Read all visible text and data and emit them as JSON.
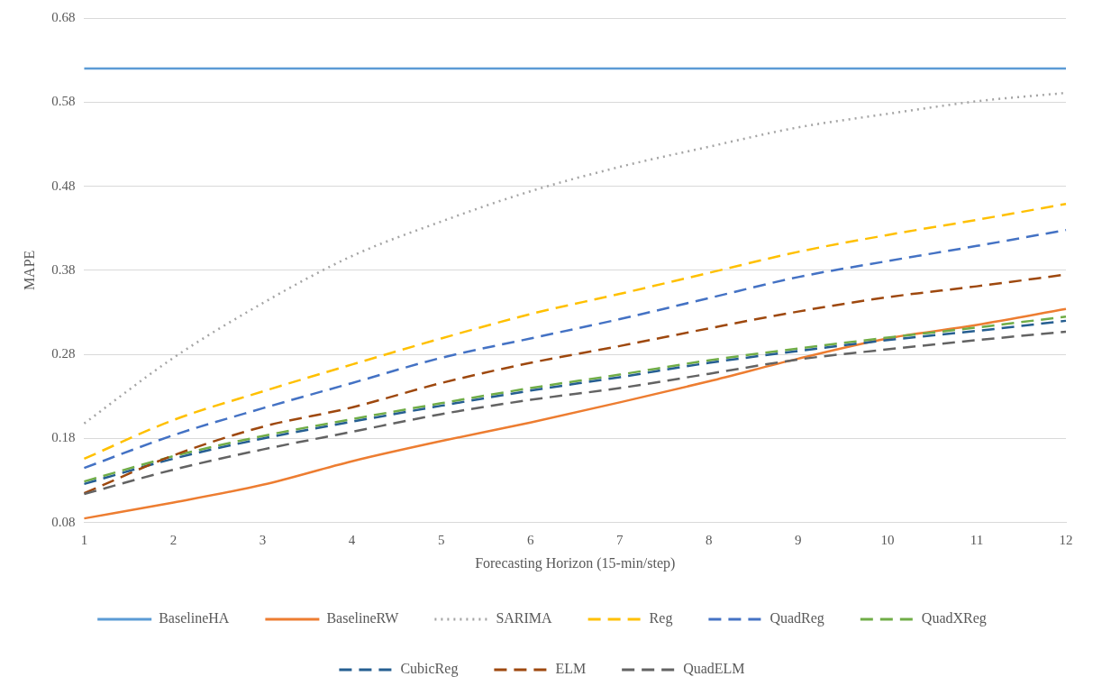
{
  "chart_data": {
    "type": "line",
    "xlabel": "Forecasting Horizon (15-min/step)",
    "ylabel": "MAPE",
    "categories": [
      "1",
      "2",
      "3",
      "4",
      "5",
      "6",
      "7",
      "8",
      "9",
      "10",
      "11",
      "12"
    ],
    "ylim": [
      0.08,
      0.68
    ],
    "yticks": [
      0.08,
      0.18,
      0.28,
      0.38,
      0.48,
      0.58,
      0.68
    ],
    "grid": "y",
    "legend": "bottom",
    "marker": "none",
    "series": [
      {
        "name": "BaselineHA",
        "color": "#5b9bd5",
        "line_style": "solid",
        "values": [
          0.62,
          0.62,
          0.62,
          0.62,
          0.62,
          0.62,
          0.62,
          0.62,
          0.62,
          0.62,
          0.62,
          0.62
        ]
      },
      {
        "name": "BaselineRW",
        "color": "#ed7d31",
        "line_style": "solid",
        "values": [
          0.085,
          0.104,
          0.125,
          0.153,
          0.177,
          0.199,
          0.223,
          0.248,
          0.275,
          0.299,
          0.315,
          0.334
        ]
      },
      {
        "name": "SARIMA",
        "color": "#a5a5a5",
        "line_style": "dotted",
        "values": [
          0.198,
          0.276,
          0.341,
          0.397,
          0.438,
          0.474,
          0.503,
          0.527,
          0.55,
          0.566,
          0.581,
          0.591
        ]
      },
      {
        "name": "Reg",
        "color": "#ffc000",
        "line_style": "dashed",
        "values": [
          0.156,
          0.202,
          0.236,
          0.268,
          0.299,
          0.328,
          0.352,
          0.377,
          0.402,
          0.422,
          0.44,
          0.459
        ]
      },
      {
        "name": "QuadReg",
        "color": "#4472c4",
        "line_style": "dashed",
        "values": [
          0.145,
          0.184,
          0.216,
          0.246,
          0.276,
          0.299,
          0.322,
          0.347,
          0.372,
          0.391,
          0.409,
          0.428
        ]
      },
      {
        "name": "QuadXReg",
        "color": "#70ad47",
        "line_style": "dashed",
        "values": [
          0.129,
          0.159,
          0.183,
          0.203,
          0.222,
          0.24,
          0.256,
          0.273,
          0.287,
          0.3,
          0.312,
          0.325
        ]
      },
      {
        "name": "CubicReg",
        "color": "#255e91",
        "line_style": "dashed",
        "values": [
          0.126,
          0.156,
          0.18,
          0.2,
          0.219,
          0.237,
          0.253,
          0.27,
          0.284,
          0.297,
          0.308,
          0.32
        ]
      },
      {
        "name": "ELM",
        "color": "#9e480e",
        "line_style": "dashed",
        "values": [
          0.115,
          0.16,
          0.194,
          0.217,
          0.246,
          0.27,
          0.29,
          0.311,
          0.331,
          0.348,
          0.361,
          0.375
        ]
      },
      {
        "name": "QuadELM",
        "color": "#636363",
        "line_style": "dashed",
        "values": [
          0.114,
          0.143,
          0.167,
          0.188,
          0.209,
          0.226,
          0.24,
          0.257,
          0.274,
          0.286,
          0.297,
          0.307
        ]
      }
    ]
  }
}
